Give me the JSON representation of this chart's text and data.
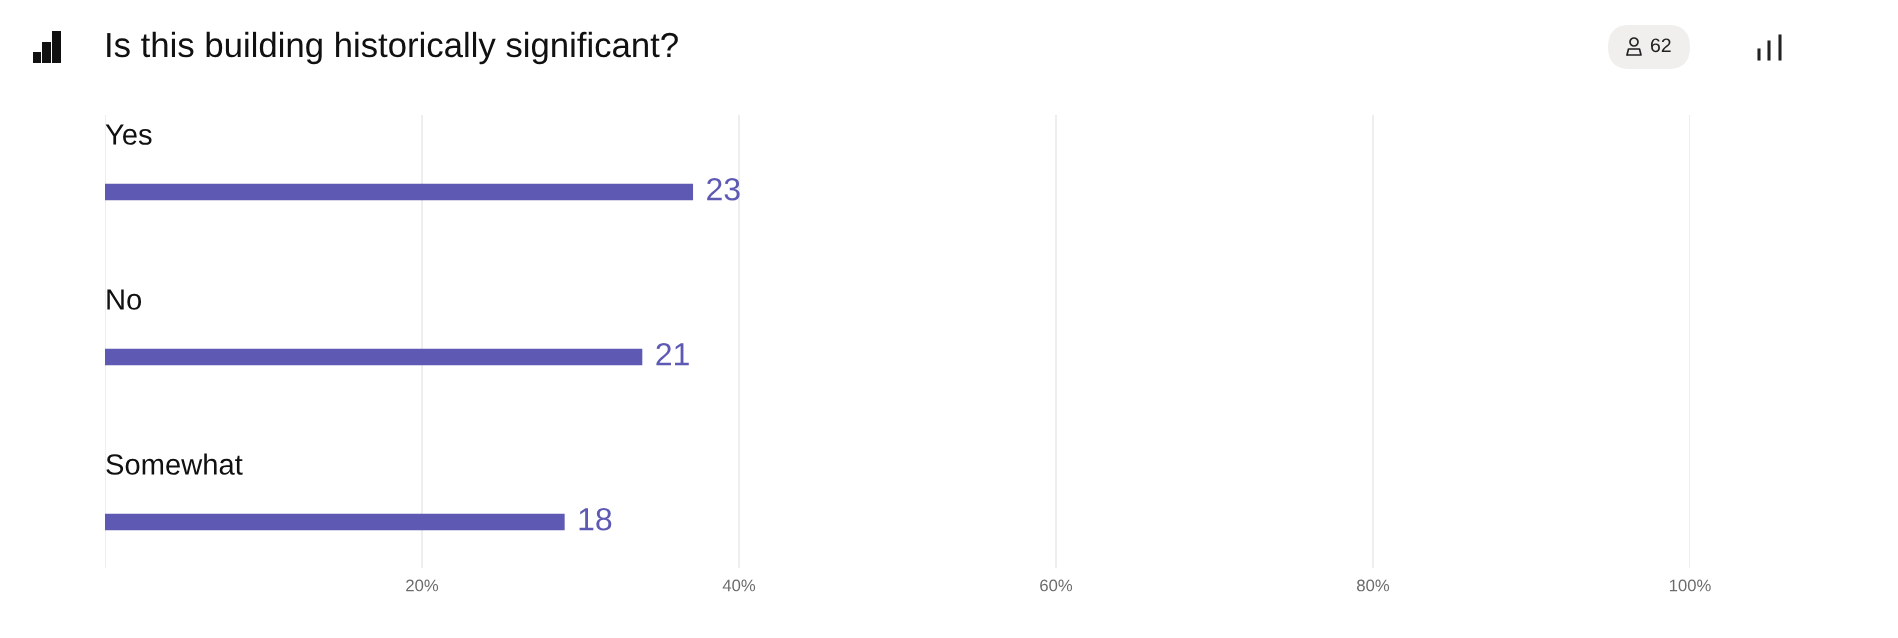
{
  "chart_data": {
    "type": "bar",
    "orientation": "horizontal",
    "title": "Is this building historically significant?",
    "categories": [
      "Yes",
      "No",
      "Somewhat"
    ],
    "values": [
      37.1,
      33.9,
      29
    ],
    "color": "#5e5ab4",
    "xlim": [
      0,
      100
    ],
    "xticks": [
      {
        "value": 0,
        "label": null
      },
      {
        "value": 20,
        "label": "20%"
      },
      {
        "value": 40,
        "label": "40%"
      },
      {
        "value": 60,
        "label": "60%"
      },
      {
        "value": 80,
        "label": "80%"
      },
      {
        "value": 100,
        "label": "100%"
      }
    ],
    "grid": "x",
    "annotations": [
      "62",
      {
        "text": "23",
        "x": 37.1,
        "y": "Yes"
      },
      {
        "text": "21",
        "x": 33.9,
        "y": "No"
      },
      {
        "text": "18",
        "x": 29,
        "y": "Somewhat"
      }
    ]
  }
}
